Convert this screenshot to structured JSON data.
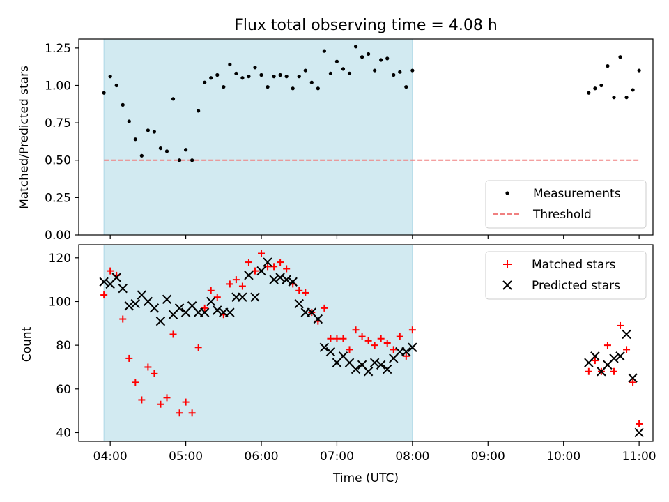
{
  "figure": {
    "title": "Flux total observing time = 4.08 h",
    "xlabel": "Time (UTC)"
  },
  "chart_data": [
    {
      "type": "scatter",
      "title": "Flux total observing time = 4.08 h",
      "xlabel": "",
      "ylabel": "Matched/Predicted stars",
      "xlim": [
        "03:35",
        "11:11"
      ],
      "ylim": [
        0,
        1.31
      ],
      "xticks": [
        "04:00",
        "05:00",
        "06:00",
        "07:00",
        "08:00",
        "09:00",
        "10:00",
        "11:00"
      ],
      "yticks": [
        "0.00",
        "0.25",
        "0.50",
        "0.75",
        "1.00",
        "1.25"
      ],
      "shaded_span": {
        "start": "03:55",
        "end": "08:00",
        "color": "#add8e6"
      },
      "legend_position": "lower right",
      "series": [
        {
          "name": "Measurements",
          "marker": "dot",
          "color": "#000000",
          "points": [
            [
              "03:55",
              0.95
            ],
            [
              "03:60",
              1.06
            ],
            [
              "04:05",
              1.0
            ],
            [
              "04:10",
              0.87
            ],
            [
              "04:15",
              0.76
            ],
            [
              "04:20",
              0.64
            ],
            [
              "04:25",
              0.53
            ],
            [
              "04:30",
              0.7
            ],
            [
              "04:35",
              0.69
            ],
            [
              "04:40",
              0.58
            ],
            [
              "04:45",
              0.56
            ],
            [
              "04:50",
              0.91
            ],
            [
              "04:55",
              0.5
            ],
            [
              "05:00",
              0.57
            ],
            [
              "05:05",
              0.5
            ],
            [
              "05:10",
              0.83
            ],
            [
              "05:15",
              1.02
            ],
            [
              "05:20",
              1.05
            ],
            [
              "05:25",
              1.07
            ],
            [
              "05:30",
              0.99
            ],
            [
              "05:35",
              1.14
            ],
            [
              "05:40",
              1.08
            ],
            [
              "05:45",
              1.05
            ],
            [
              "05:50",
              1.06
            ],
            [
              "05:55",
              1.12
            ],
            [
              "06:00",
              1.07
            ],
            [
              "06:05",
              0.99
            ],
            [
              "06:10",
              1.06
            ],
            [
              "06:15",
              1.07
            ],
            [
              "06:20",
              1.06
            ],
            [
              "06:25",
              0.98
            ],
            [
              "06:30",
              1.06
            ],
            [
              "06:35",
              1.1
            ],
            [
              "06:40",
              1.02
            ],
            [
              "06:45",
              0.98
            ],
            [
              "06:50",
              1.23
            ],
            [
              "06:55",
              1.08
            ],
            [
              "07:00",
              1.16
            ],
            [
              "07:05",
              1.11
            ],
            [
              "07:10",
              1.08
            ],
            [
              "07:15",
              1.26
            ],
            [
              "07:20",
              1.19
            ],
            [
              "07:25",
              1.21
            ],
            [
              "07:30",
              1.1
            ],
            [
              "07:35",
              1.17
            ],
            [
              "07:40",
              1.18
            ],
            [
              "07:45",
              1.07
            ],
            [
              "07:50",
              1.09
            ],
            [
              "07:55",
              0.99
            ],
            [
              "08:00",
              1.1
            ],
            [
              "10:20",
              0.95
            ],
            [
              "10:25",
              0.98
            ],
            [
              "10:30",
              1.0
            ],
            [
              "10:35",
              1.13
            ],
            [
              "10:40",
              0.92
            ],
            [
              "10:45",
              1.19
            ],
            [
              "10:50",
              0.92
            ],
            [
              "10:55",
              0.97
            ],
            [
              "11:00",
              1.1
            ]
          ]
        },
        {
          "name": "Threshold",
          "marker": "dashed-line",
          "color": "#f08080",
          "points": [
            [
              "03:55",
              0.5
            ],
            [
              "11:00",
              0.5
            ]
          ]
        }
      ]
    },
    {
      "type": "scatter",
      "title": "",
      "xlabel": "Time (UTC)",
      "ylabel": "Count",
      "xlim": [
        "03:35",
        "11:11"
      ],
      "ylim": [
        36,
        126
      ],
      "xticks": [
        "04:00",
        "05:00",
        "06:00",
        "07:00",
        "08:00",
        "09:00",
        "10:00",
        "11:00"
      ],
      "yticks": [
        "40",
        "60",
        "80",
        "100",
        "120"
      ],
      "shaded_span": {
        "start": "03:55",
        "end": "08:00",
        "color": "#add8e6"
      },
      "legend_position": "upper right",
      "series": [
        {
          "name": "Matched stars",
          "marker": "plus",
          "color": "#ff0000",
          "points": [
            [
              "03:55",
              103
            ],
            [
              "03:60",
              114
            ],
            [
              "04:05",
              112
            ],
            [
              "04:10",
              92
            ],
            [
              "04:15",
              74
            ],
            [
              "04:20",
              63
            ],
            [
              "04:25",
              55
            ],
            [
              "04:30",
              70
            ],
            [
              "04:35",
              67
            ],
            [
              "04:40",
              53
            ],
            [
              "04:45",
              56
            ],
            [
              "04:50",
              85
            ],
            [
              "04:55",
              49
            ],
            [
              "05:00",
              54
            ],
            [
              "05:05",
              49
            ],
            [
              "05:10",
              79
            ],
            [
              "05:15",
              97
            ],
            [
              "05:20",
              105
            ],
            [
              "05:25",
              102
            ],
            [
              "05:30",
              94
            ],
            [
              "05:35",
              108
            ],
            [
              "05:40",
              110
            ],
            [
              "05:45",
              107
            ],
            [
              "05:50",
              118
            ],
            [
              "05:55",
              114
            ],
            [
              "06:00",
              122
            ],
            [
              "06:05",
              116
            ],
            [
              "06:10",
              116
            ],
            [
              "06:15",
              118
            ],
            [
              "06:20",
              115
            ],
            [
              "06:25",
              108
            ],
            [
              "06:30",
              105
            ],
            [
              "06:35",
              104
            ],
            [
              "06:40",
              95
            ],
            [
              "06:45",
              91
            ],
            [
              "06:50",
              97
            ],
            [
              "06:55",
              83
            ],
            [
              "07:00",
              83
            ],
            [
              "07:05",
              83
            ],
            [
              "07:10",
              78
            ],
            [
              "07:15",
              87
            ],
            [
              "07:20",
              84
            ],
            [
              "07:25",
              82
            ],
            [
              "07:30",
              80
            ],
            [
              "07:35",
              83
            ],
            [
              "07:40",
              81
            ],
            [
              "07:45",
              78
            ],
            [
              "07:50",
              84
            ],
            [
              "07:55",
              75
            ],
            [
              "08:00",
              87
            ],
            [
              "10:20",
              68
            ],
            [
              "10:25",
              73
            ],
            [
              "10:30",
              68
            ],
            [
              "10:35",
              80
            ],
            [
              "10:40",
              68
            ],
            [
              "10:45",
              89
            ],
            [
              "10:50",
              78
            ],
            [
              "10:55",
              63
            ],
            [
              "11:00",
              44
            ]
          ]
        },
        {
          "name": "Predicted stars",
          "marker": "x",
          "color": "#000000",
          "points": [
            [
              "03:55",
              109
            ],
            [
              "03:60",
              108
            ],
            [
              "04:05",
              111
            ],
            [
              "04:10",
              106
            ],
            [
              "04:15",
              98
            ],
            [
              "04:20",
              99
            ],
            [
              "04:25",
              103
            ],
            [
              "04:30",
              100
            ],
            [
              "04:35",
              97
            ],
            [
              "04:40",
              91
            ],
            [
              "04:45",
              101
            ],
            [
              "04:50",
              94
            ],
            [
              "04:55",
              97
            ],
            [
              "05:00",
              95
            ],
            [
              "05:05",
              98
            ],
            [
              "05:10",
              95
            ],
            [
              "05:15",
              95
            ],
            [
              "05:20",
              100
            ],
            [
              "05:25",
              96
            ],
            [
              "05:30",
              95
            ],
            [
              "05:35",
              95
            ],
            [
              "05:40",
              102
            ],
            [
              "05:45",
              102
            ],
            [
              "05:50",
              112
            ],
            [
              "05:55",
              102
            ],
            [
              "06:00",
              114
            ],
            [
              "06:05",
              118
            ],
            [
              "06:10",
              110
            ],
            [
              "06:15",
              111
            ],
            [
              "06:20",
              110
            ],
            [
              "06:25",
              109
            ],
            [
              "06:30",
              99
            ],
            [
              "06:35",
              95
            ],
            [
              "06:40",
              95
            ],
            [
              "06:45",
              92
            ],
            [
              "06:50",
              79
            ],
            [
              "06:55",
              77
            ],
            [
              "07:00",
              72
            ],
            [
              "07:05",
              75
            ],
            [
              "07:10",
              72
            ],
            [
              "07:15",
              69
            ],
            [
              "07:20",
              71
            ],
            [
              "07:25",
              68
            ],
            [
              "07:30",
              72
            ],
            [
              "07:35",
              71
            ],
            [
              "07:40",
              69
            ],
            [
              "07:45",
              74
            ],
            [
              "07:50",
              77
            ],
            [
              "07:55",
              77
            ],
            [
              "08:00",
              79
            ],
            [
              "10:20",
              72
            ],
            [
              "10:25",
              75
            ],
            [
              "10:30",
              68
            ],
            [
              "10:35",
              71
            ],
            [
              "10:40",
              74
            ],
            [
              "10:45",
              75
            ],
            [
              "10:50",
              85
            ],
            [
              "10:55",
              65
            ],
            [
              "11:00",
              40
            ]
          ]
        }
      ]
    }
  ]
}
